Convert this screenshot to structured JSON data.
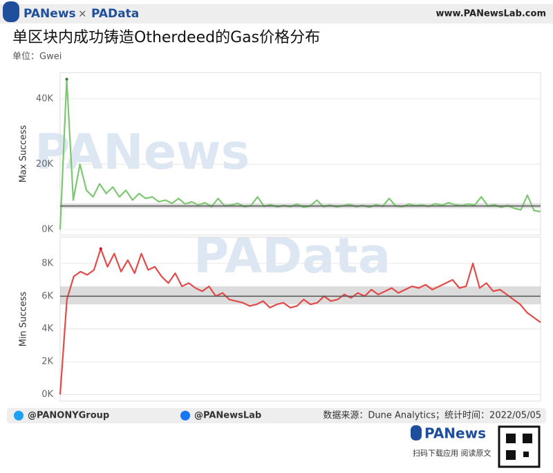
{
  "header": {
    "brand_left": "PANews",
    "brand_x": "×",
    "brand_right": "PAData",
    "site": "www.PANewsLab.com",
    "title": "单区块内成功铸造Otherdeed的Gas价格分布",
    "subtitle": "单位：Gwei"
  },
  "watermarks": [
    "PANews",
    "PAData"
  ],
  "chart_data": [
    {
      "type": "line",
      "y_label": "Max Success",
      "color": "#7cc870",
      "peak_color": "#2e7d3a",
      "grid": true,
      "ylim": [
        -1700,
        48000
      ],
      "yticks": [
        {
          "value": 0,
          "label": "0K"
        },
        {
          "value": 20000,
          "label": "20K"
        },
        {
          "value": 40000,
          "label": "40K"
        }
      ],
      "reference_line": 7200,
      "band": [
        6500,
        8000
      ],
      "values": [
        0,
        46000,
        9000,
        20000,
        12000,
        10000,
        14000,
        11000,
        13000,
        10000,
        12000,
        9000,
        11000,
        9500,
        10000,
        8500,
        9000,
        8000,
        9500,
        7800,
        8500,
        7500,
        8200,
        7000,
        9500,
        7200,
        7500,
        8000,
        7000,
        7300,
        10000,
        7100,
        7600,
        6900,
        7400,
        7000,
        7800,
        6800,
        7200,
        9000,
        7000,
        7500,
        6900,
        7300,
        7700,
        7000,
        7400,
        6800,
        7600,
        7100,
        9500,
        7200,
        7000,
        7800,
        7300,
        7500,
        7100,
        7900,
        7400,
        8200,
        7600,
        7300,
        7800,
        7500,
        10000,
        7200,
        7600,
        6800,
        7400,
        6500,
        6000,
        10500,
        5800,
        5500
      ]
    },
    {
      "type": "line",
      "y_label": "Min Success",
      "color": "#e24a4a",
      "peak_color": "#c8102e",
      "grid": true,
      "ylim": [
        -400,
        9600
      ],
      "yticks": [
        {
          "value": 0,
          "label": "0K"
        },
        {
          "value": 2000,
          "label": "2K"
        },
        {
          "value": 4000,
          "label": "4K"
        },
        {
          "value": 6000,
          "label": "6K"
        },
        {
          "value": 8000,
          "label": "8K"
        }
      ],
      "reference_line": 6000,
      "band": [
        5500,
        6600
      ],
      "values": [
        0,
        5800,
        7200,
        7500,
        7300,
        7600,
        8900,
        7800,
        8600,
        7500,
        8200,
        7400,
        8600,
        7600,
        7800,
        7200,
        6800,
        7400,
        6600,
        6800,
        6500,
        6300,
        6600,
        6000,
        6200,
        5800,
        5700,
        5600,
        5400,
        5500,
        5700,
        5300,
        5500,
        5600,
        5300,
        5400,
        5800,
        5500,
        5600,
        6000,
        5700,
        5800,
        6100,
        5900,
        6200,
        6000,
        6400,
        6100,
        6300,
        6500,
        6200,
        6400,
        6600,
        6500,
        6700,
        6400,
        6600,
        6800,
        7000,
        6500,
        6600,
        8000,
        6500,
        6800,
        6300,
        6400,
        6100,
        5800,
        5500,
        5000,
        4700,
        4400
      ]
    }
  ],
  "footer": {
    "twitter": "@PANONYGroup",
    "facebook": "@PANewsLab",
    "source": "数据来源：Dune Analytics；统计时间：2022/05/05",
    "logo": "PANews",
    "cta": "扫码下载应用  阅读原文"
  }
}
